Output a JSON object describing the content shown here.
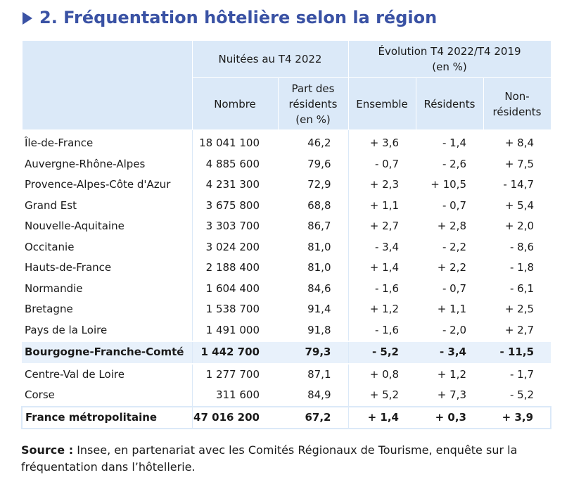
{
  "title": "2. Fréquentation hôtelière selon la région",
  "header": {
    "group1": "Nuitées au T4 2022",
    "group2_line1": "Évolution T4 2022/T4 2019",
    "group2_line2": "(en %)",
    "col_nombre": "Nombre",
    "col_part_1": "Part des",
    "col_part_2": "résidents",
    "col_part_3": "(en %)",
    "col_ensemble": "Ensemble",
    "col_residents": "Résidents",
    "col_nonres_1": "Non-",
    "col_nonres_2": "résidents"
  },
  "rows": [
    {
      "region": "Île-de-France",
      "nombre": "18 041 100",
      "part": "46,2",
      "ensemble": "+ 3,6",
      "residents": "- 1,4",
      "non_residents": "+ 8,4"
    },
    {
      "region": "Auvergne-Rhône-Alpes",
      "nombre": "4 885 600",
      "part": "79,6",
      "ensemble": "- 0,7",
      "residents": "- 2,6",
      "non_residents": "+ 7,5"
    },
    {
      "region": "Provence-Alpes-Côte d'Azur",
      "nombre": "4 231 300",
      "part": "72,9",
      "ensemble": "+ 2,3",
      "residents": "+ 10,5",
      "non_residents": "- 14,7"
    },
    {
      "region": "Grand Est",
      "nombre": "3 675 800",
      "part": "68,8",
      "ensemble": "+ 1,1",
      "residents": "- 0,7",
      "non_residents": "+ 5,4"
    },
    {
      "region": "Nouvelle-Aquitaine",
      "nombre": "3 303 700",
      "part": "86,7",
      "ensemble": "+ 2,7",
      "residents": "+ 2,8",
      "non_residents": "+ 2,0"
    },
    {
      "region": "Occitanie",
      "nombre": "3 024 200",
      "part": "81,0",
      "ensemble": "- 3,4",
      "residents": "- 2,2",
      "non_residents": "- 8,6"
    },
    {
      "region": "Hauts-de-France",
      "nombre": "2 188 400",
      "part": "81,0",
      "ensemble": "+ 1,4",
      "residents": "+ 2,2",
      "non_residents": "- 1,8"
    },
    {
      "region": "Normandie",
      "nombre": "1 604 400",
      "part": "84,6",
      "ensemble": "- 1,6",
      "residents": "- 0,7",
      "non_residents": "- 6,1"
    },
    {
      "region": "Bretagne",
      "nombre": "1 538 700",
      "part": "91,4",
      "ensemble": "+ 1,2",
      "residents": "+ 1,1",
      "non_residents": "+ 2,5"
    },
    {
      "region": "Pays de la Loire",
      "nombre": "1 491 000",
      "part": "91,8",
      "ensemble": "- 1,6",
      "residents": "- 2,0",
      "non_residents": "+ 2,7"
    },
    {
      "region": "Bourgogne-Franche-Comté",
      "nombre": "1 442 700",
      "part": "79,3",
      "ensemble": "- 5,2",
      "residents": "- 3,4",
      "non_residents": "- 11,5"
    },
    {
      "region": "Centre-Val de Loire",
      "nombre": "1 277 700",
      "part": "87,1",
      "ensemble": "+ 0,8",
      "residents": "+ 1,2",
      "non_residents": "- 1,7"
    },
    {
      "region": "Corse",
      "nombre": "311 600",
      "part": "84,9",
      "ensemble": "+ 5,2",
      "residents": "+ 7,3",
      "non_residents": "- 5,2"
    },
    {
      "region": "France métropolitaine",
      "nombre": "47 016 200",
      "part": "67,2",
      "ensemble": "+ 1,4",
      "residents": "+ 0,3",
      "non_residents": "+ 3,9"
    }
  ],
  "source_label": "Source :",
  "source_text": " Insee, en partenariat avec les Comités Régionaux de Tourisme, enquête sur la fréquentation dans l’hôtellerie.",
  "colors": {
    "accent": "#3a52a4",
    "header_bg": "#dbe9f8",
    "highlight_bg": "#e8f1fb"
  }
}
